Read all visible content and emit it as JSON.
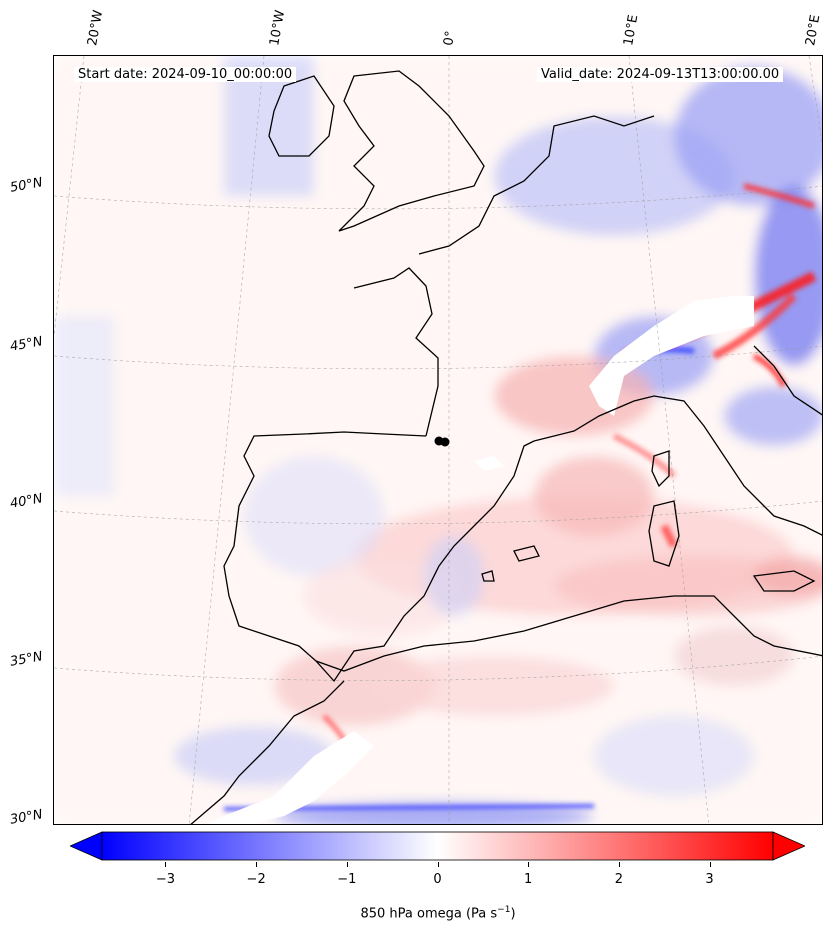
{
  "figure": {
    "start_text": "Start date: 2024-09-10_00:00:00",
    "valid_text": "Valid_date: 2024-09-13T13:00:00.00"
  },
  "axes": {
    "lon_labels": [
      "20°W",
      "10°W",
      "0°",
      "10°E",
      "20°E"
    ],
    "lat_labels": [
      "50°N",
      "45°N",
      "40°N",
      "35°N",
      "30°N"
    ]
  },
  "colorbar": {
    "label_main": "850 hPa omega (Pa s",
    "label_exp": "−1",
    "label_end": ")",
    "ticks": [
      "−3",
      "−2",
      "−1",
      "0",
      "1",
      "2",
      "3"
    ],
    "range": [
      -3.7,
      3.7
    ],
    "colormap": "bwr",
    "extend": "both"
  },
  "colors": {
    "negative": "#0000ff",
    "zero": "#ffffff",
    "positive": "#ff0000",
    "coastline": "#000000",
    "gridline": "#999999"
  },
  "markers": [
    {
      "name": "station-marker",
      "color": "#000000"
    }
  ]
}
